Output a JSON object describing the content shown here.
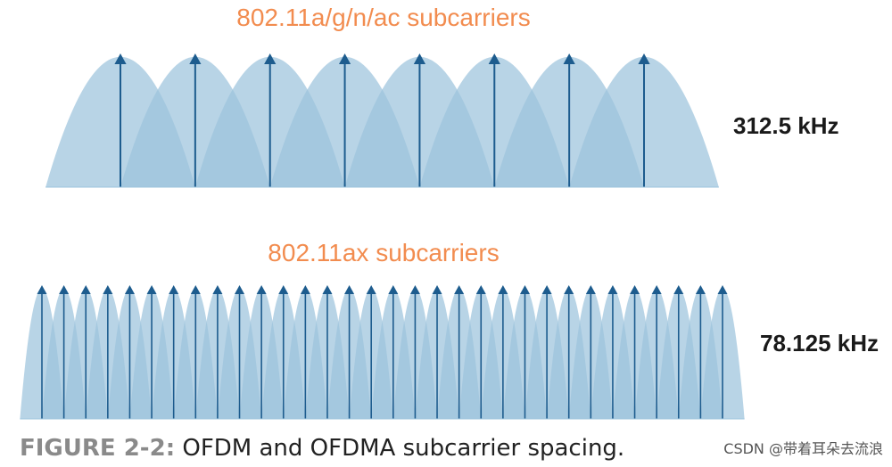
{
  "top_panel": {
    "title": "802.11a/g/n/ac subcarriers",
    "spacing_label": "312.5 kHz",
    "subcarrier_count": 8
  },
  "bottom_panel": {
    "title": "802.11ax subcarriers",
    "spacing_label": "78.125 kHz",
    "subcarrier_count": 32
  },
  "caption": {
    "label": "FIGURE 2-2:",
    "text": " OFDM and OFDMA subcarrier spacing."
  },
  "watermark": "CSDN @带着耳朵去流浪",
  "colors": {
    "lobe_fill": "#9cc4dd",
    "overlap_fill": "#6a9dbf",
    "arrow": "#1d5c8e",
    "title": "#f28c4f"
  }
}
